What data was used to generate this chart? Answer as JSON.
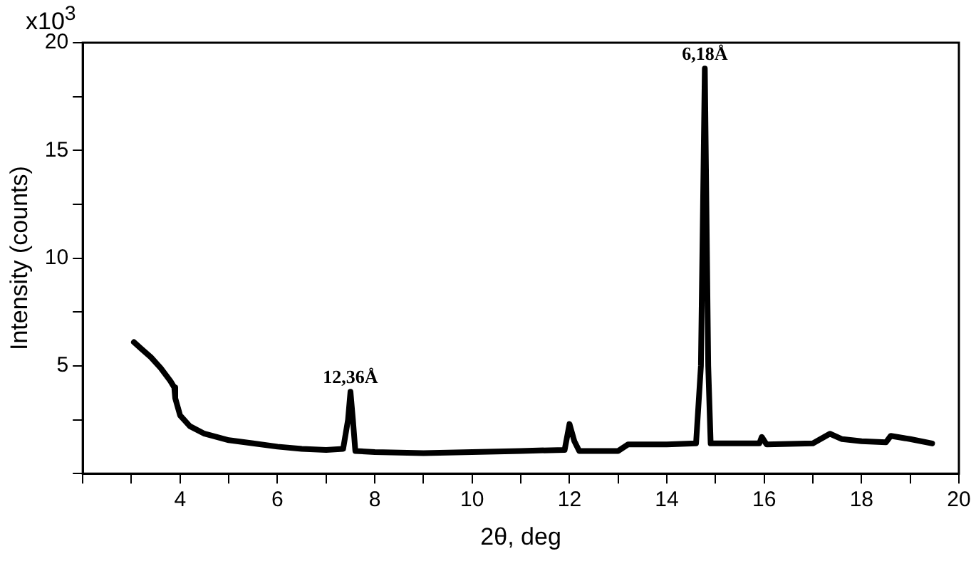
{
  "chart_data": {
    "type": "line",
    "xlabel": "2θ, deg",
    "ylabel": "Intensity (counts)",
    "annotations": [
      "x10$^{3}$",
      {
        "text": "12,36Å",
        "x": 7.5,
        "y": 3.8
      },
      {
        "text": "6,18Å",
        "x": 14.78,
        "y": 18.8
      }
    ],
    "x": [
      3.05,
      3.2,
      3.4,
      3.6,
      3.8,
      3.88,
      3.9,
      4.0,
      4.2,
      4.5,
      5.0,
      5.5,
      6.0,
      6.5,
      7.0,
      7.35,
      7.45,
      7.5,
      7.55,
      7.6,
      8.0,
      9.0,
      10.0,
      11.0,
      11.9,
      12.0,
      12.1,
      12.2,
      13.0,
      13.2,
      14.0,
      14.6,
      14.7,
      14.78,
      14.85,
      14.9,
      15.9,
      15.95,
      16.05,
      17.0,
      17.35,
      17.6,
      18.0,
      18.5,
      18.6,
      19.0,
      19.45
    ],
    "series": [
      {
        "color": "#000000",
        "values": [
          6.1,
          5.8,
          5.4,
          4.9,
          4.3,
          4.0,
          3.5,
          2.7,
          2.2,
          1.85,
          1.55,
          1.4,
          1.25,
          1.15,
          1.1,
          1.15,
          2.5,
          3.8,
          2.5,
          1.05,
          1.0,
          0.95,
          1.0,
          1.05,
          1.1,
          2.3,
          1.5,
          1.05,
          1.05,
          1.35,
          1.35,
          1.4,
          5.0,
          18.8,
          5.0,
          1.4,
          1.4,
          1.7,
          1.35,
          1.4,
          1.85,
          1.6,
          1.5,
          1.45,
          1.75,
          1.6,
          1.4
        ]
      }
    ],
    "xlim": [
      2,
      20
    ],
    "xticks": [
      {
        "value": 2,
        "label": null
      },
      {
        "value": 3,
        "label": null
      },
      4,
      {
        "value": 5,
        "label": null
      },
      6,
      {
        "value": 7,
        "label": null
      },
      8,
      {
        "value": 9,
        "label": null
      },
      10,
      {
        "value": 11,
        "label": null
      },
      12,
      {
        "value": 13,
        "label": null
      },
      14,
      {
        "value": 15,
        "label": null
      },
      16,
      {
        "value": 17,
        "label": null
      },
      18,
      {
        "value": 19,
        "label": null
      },
      20
    ],
    "ylim": [
      0,
      20
    ],
    "yticks": [
      {
        "value": 0,
        "label": null
      },
      {
        "value": 2.5,
        "label": null
      },
      5,
      {
        "value": 7.5,
        "label": null
      },
      10,
      {
        "value": 12.5,
        "label": null
      },
      15,
      {
        "value": 17.5,
        "label": null
      },
      20
    ],
    "grid": false,
    "legend": false,
    "marker": "none",
    "line_style": "solid"
  }
}
